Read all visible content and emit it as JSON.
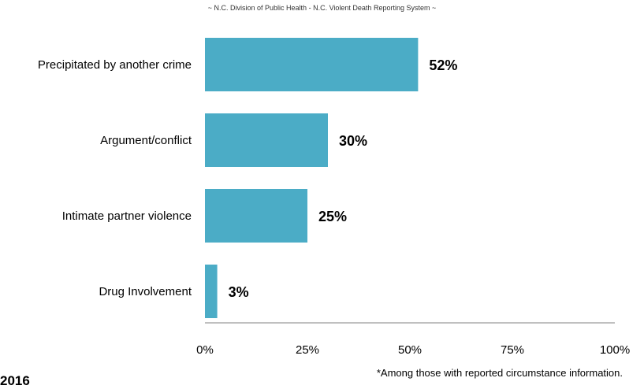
{
  "chart_data": {
    "type": "bar",
    "orientation": "horizontal",
    "title": "",
    "subtitle": "~ N.C. Division of Public Health - N.C. Violent Death Reporting System ~",
    "categories": [
      "Precipitated by another crime",
      "Argument/conflict",
      "Intimate partner violence",
      "Drug Involvement"
    ],
    "values": [
      52,
      30,
      25,
      3
    ],
    "data_labels": [
      "52%",
      "30%",
      "25%",
      "3%"
    ],
    "xlim": [
      0,
      100
    ],
    "xticks": [
      "0%",
      "25%",
      "50%",
      "75%",
      "100%"
    ],
    "xlabel": "",
    "ylabel": "",
    "grid": false,
    "bar_color": "#4bacc6"
  },
  "footnote": "*Among those with reported circumstance information.",
  "year_label": "2016"
}
